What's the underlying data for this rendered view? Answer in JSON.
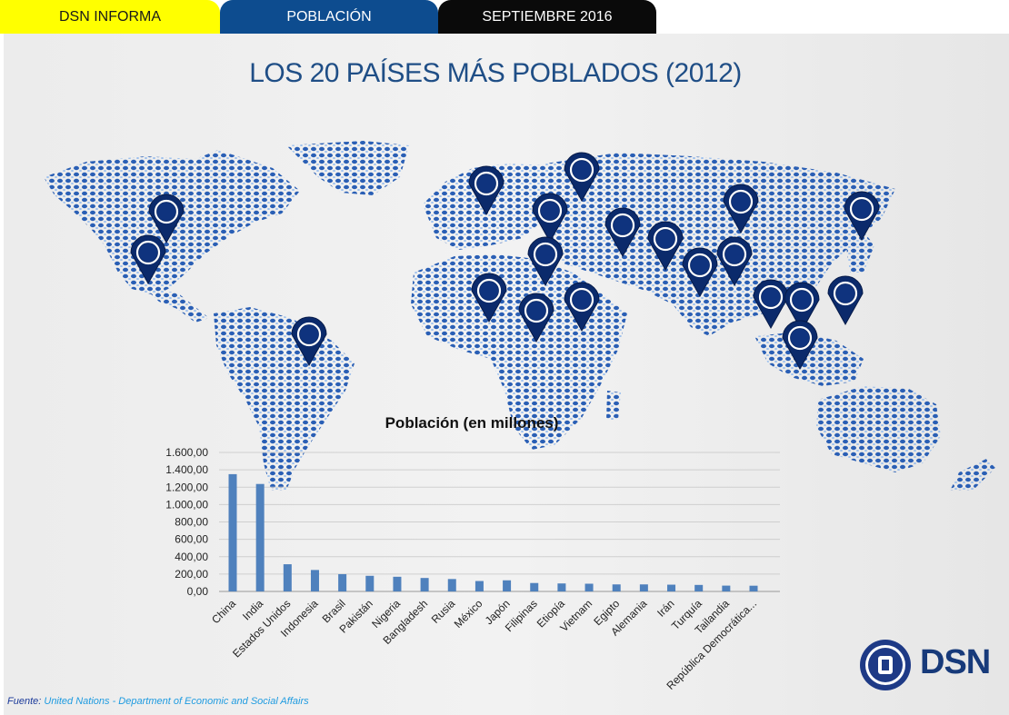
{
  "header": {
    "tab1": "DSN INFORMA",
    "tab2": "POBLACIÓN",
    "tab3": "SEPTIEMBRE 2016"
  },
  "title": "LOS 20 PAÍSES MÁS POBLADOS (2012)",
  "colors": {
    "tab1": "#ffff00",
    "tab2": "#0d4c8f",
    "tab3": "#0a0a0a",
    "title": "#1f4e86",
    "bar": "#4f81bd",
    "pin": "#0b2a6b",
    "map_dots": "#2f63b8"
  },
  "map": {
    "pin_count": 20,
    "icon": "map-pin-icon"
  },
  "chart_data": {
    "type": "bar",
    "title": "Población (en millones)",
    "categories": [
      "China",
      "India",
      "Estados Unidos",
      "Indonesia",
      "Brasil",
      "Pakistán",
      "Nigeria",
      "Bangladesh",
      "Rusia",
      "México",
      "Japón",
      "Filipinas",
      "Etiopía",
      "Vietnam",
      "Egipto",
      "Alemania",
      "Irán",
      "Turquía",
      "Tailandia",
      "República Democrática..."
    ],
    "values": [
      1350,
      1237,
      313,
      247,
      199,
      180,
      169,
      155,
      143,
      120,
      128,
      97,
      92,
      89,
      81,
      81,
      78,
      75,
      67,
      66
    ],
    "ylim": [
      0,
      1600
    ],
    "yticks": [
      "0,00",
      "200,00",
      "400,00",
      "600,00",
      "800,00",
      "1.000,00",
      "1.200,00",
      "1.400,00",
      "1.600,00"
    ],
    "grid": true,
    "xlabel": "",
    "ylabel": ""
  },
  "source": {
    "label": "Fuente:",
    "text": "United Nations - Department of Economic and Social Affairs"
  },
  "logo": {
    "text": "DSN",
    "emblem_icon": "dsn-emblem-icon"
  }
}
